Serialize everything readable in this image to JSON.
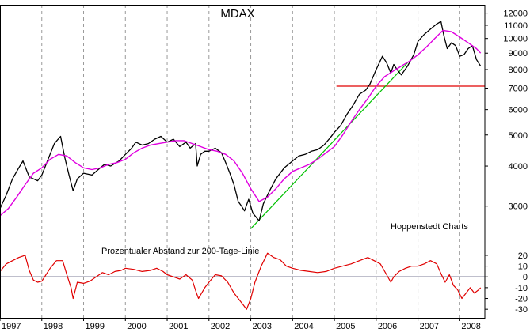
{
  "chart_data": [
    {
      "type": "line",
      "title": "MDAX",
      "yscale": "log",
      "ylim": [
        2400,
        12600
      ],
      "xlim": [
        1997.0,
        2008.6
      ],
      "grid": {
        "vertical": true,
        "horizontal": false
      },
      "y_ticks": [
        3000,
        4000,
        5000,
        6000,
        7000,
        8000,
        9000,
        10000,
        11000,
        12000
      ],
      "x_ticks": [
        "1997",
        "1998",
        "1999",
        "2000",
        "2001",
        "2002",
        "2003",
        "2004",
        "2005",
        "2006",
        "2007",
        "2008"
      ],
      "annotations": [
        "Hoppenstedt Charts"
      ],
      "colors": {
        "index": "#000000",
        "moving_average": "#e000e0",
        "support": "#e00000",
        "trend": "#00c000"
      },
      "series": [
        {
          "key": "index",
          "x": [
            1997.0,
            1997.15,
            1997.3,
            1997.45,
            1997.55,
            1997.7,
            1997.8,
            1997.9,
            1998.0,
            1998.15,
            1998.3,
            1998.45,
            1998.55,
            1998.65,
            1998.75,
            1998.85,
            1999.0,
            1999.2,
            1999.35,
            1999.5,
            1999.65,
            1999.85,
            2000.0,
            2000.15,
            2000.25,
            2000.4,
            2000.55,
            2000.7,
            2000.85,
            2001.0,
            2001.15,
            2001.3,
            2001.45,
            2001.55,
            2001.68,
            2001.72,
            2001.8,
            2001.9,
            2002.0,
            2002.15,
            2002.3,
            2002.4,
            2002.5,
            2002.6,
            2002.7,
            2002.78,
            2002.85,
            2002.95,
            2003.05,
            2003.2,
            2003.3,
            2003.45,
            2003.6,
            2003.8,
            2004.0,
            2004.15,
            2004.3,
            2004.45,
            2004.6,
            2004.75,
            2004.9,
            2005.0,
            2005.15,
            2005.3,
            2005.45,
            2005.6,
            2005.75,
            2005.85,
            2006.0,
            2006.15,
            2006.25,
            2006.35,
            2006.42,
            2006.5,
            2006.6,
            2006.75,
            2006.9,
            2007.0,
            2007.15,
            2007.3,
            2007.45,
            2007.55,
            2007.62,
            2007.7,
            2007.8,
            2007.9,
            2008.0,
            2008.1,
            2008.2,
            2008.3,
            2008.4,
            2008.5
          ],
          "y": [
            2950,
            3250,
            3650,
            3950,
            4150,
            3700,
            3650,
            3600,
            3750,
            4200,
            4700,
            4950,
            4250,
            3750,
            3350,
            3650,
            3800,
            3750,
            3900,
            4050,
            4000,
            4150,
            4350,
            4550,
            4750,
            4650,
            4700,
            4850,
            4950,
            4750,
            4850,
            4600,
            4750,
            4550,
            4700,
            4000,
            4350,
            4450,
            4450,
            4550,
            4400,
            4100,
            3800,
            3500,
            3100,
            3000,
            2900,
            3150,
            2850,
            2700,
            3050,
            3350,
            3650,
            3950,
            4150,
            4300,
            4350,
            4450,
            4500,
            4650,
            4900,
            5100,
            5350,
            5800,
            6200,
            6700,
            6900,
            7200,
            8000,
            8800,
            8400,
            7800,
            8300,
            8000,
            7700,
            8200,
            8900,
            9800,
            10300,
            10700,
            11100,
            11300,
            10200,
            9300,
            9700,
            9500,
            8800,
            8900,
            9300,
            9500,
            8600,
            8200
          ]
        },
        {
          "key": "moving_average",
          "x": [
            1997.0,
            1997.2,
            1997.4,
            1997.6,
            1997.8,
            1998.0,
            1998.2,
            1998.4,
            1998.6,
            1998.8,
            1999.0,
            1999.2,
            1999.4,
            1999.6,
            1999.8,
            2000.0,
            2000.2,
            2000.4,
            2000.6,
            2000.8,
            2001.0,
            2001.2,
            2001.4,
            2001.6,
            2001.8,
            2002.0,
            2002.2,
            2002.4,
            2002.6,
            2002.8,
            2003.0,
            2003.2,
            2003.4,
            2003.6,
            2003.8,
            2004.0,
            2004.2,
            2004.4,
            2004.6,
            2004.8,
            2005.0,
            2005.2,
            2005.4,
            2005.6,
            2005.8,
            2006.0,
            2006.2,
            2006.4,
            2006.6,
            2006.8,
            2007.0,
            2007.2,
            2007.4,
            2007.6,
            2007.8,
            2008.0,
            2008.2,
            2008.4,
            2008.5
          ],
          "y": [
            2800,
            2950,
            3200,
            3500,
            3800,
            3950,
            4200,
            4350,
            4300,
            4100,
            3950,
            3900,
            3950,
            4050,
            4100,
            4200,
            4400,
            4550,
            4650,
            4700,
            4750,
            4800,
            4800,
            4700,
            4600,
            4500,
            4450,
            4350,
            4150,
            3800,
            3400,
            3100,
            3200,
            3400,
            3650,
            3850,
            3950,
            4050,
            4200,
            4400,
            4600,
            5000,
            5500,
            6000,
            6500,
            7100,
            7600,
            7900,
            8200,
            8500,
            8900,
            9400,
            10000,
            10600,
            10500,
            10100,
            9700,
            9300,
            9000
          ]
        }
      ],
      "reference_lines": [
        {
          "key": "support",
          "x": [
            2005.05,
            2008.6
          ],
          "y": [
            7100,
            7100
          ]
        },
        {
          "key": "trend",
          "x": [
            2003.0,
            2006.75
          ],
          "y": [
            2550,
            8400
          ]
        }
      ]
    },
    {
      "type": "line",
      "title": "Prozentualer Abstand zur 200-Tage-Linie",
      "ylim": [
        -35,
        28
      ],
      "y_ticks": [
        -30,
        -20,
        -10,
        0,
        10,
        20
      ],
      "zero_line": true,
      "colors": {
        "deviation": "#e00000",
        "zero": "#000033"
      },
      "series": [
        {
          "key": "deviation",
          "x": [
            1997.0,
            1997.15,
            1997.3,
            1997.45,
            1997.6,
            1997.7,
            1997.8,
            1997.9,
            1998.0,
            1998.2,
            1998.35,
            1998.5,
            1998.6,
            1998.7,
            1998.75,
            1998.85,
            1999.0,
            1999.15,
            1999.3,
            1999.45,
            1999.6,
            1999.75,
            1999.9,
            2000.0,
            2000.2,
            2000.4,
            2000.6,
            2000.75,
            2000.9,
            2001.0,
            2001.15,
            2001.3,
            2001.45,
            2001.6,
            2001.7,
            2001.75,
            2001.9,
            2002.0,
            2002.15,
            2002.3,
            2002.45,
            2002.6,
            2002.7,
            2002.8,
            2002.9,
            2003.0,
            2003.1,
            2003.25,
            2003.4,
            2003.55,
            2003.7,
            2003.85,
            2004.0,
            2004.2,
            2004.4,
            2004.6,
            2004.8,
            2005.0,
            2005.2,
            2005.4,
            2005.6,
            2005.8,
            2005.95,
            2006.1,
            2006.25,
            2006.35,
            2006.42,
            2006.55,
            2006.7,
            2006.85,
            2007.0,
            2007.15,
            2007.3,
            2007.45,
            2007.55,
            2007.65,
            2007.75,
            2007.85,
            2007.95,
            2008.05,
            2008.15,
            2008.25,
            2008.35,
            2008.45,
            2008.5
          ],
          "y": [
            5,
            12,
            15,
            18,
            20,
            6,
            -3,
            -5,
            -4,
            8,
            15,
            15,
            2,
            -10,
            -20,
            -5,
            -6,
            -4,
            0,
            4,
            2,
            5,
            6,
            8,
            7,
            5,
            6,
            8,
            5,
            2,
            0,
            -2,
            2,
            -3,
            -15,
            -20,
            -10,
            -5,
            2,
            1,
            -5,
            -15,
            -20,
            -25,
            -30,
            -20,
            -5,
            10,
            22,
            18,
            16,
            10,
            8,
            6,
            5,
            4,
            5,
            8,
            10,
            12,
            15,
            18,
            15,
            12,
            2,
            -5,
            0,
            5,
            8,
            10,
            10,
            12,
            15,
            12,
            3,
            -5,
            2,
            -8,
            -12,
            -20,
            -15,
            -10,
            -15,
            -12,
            -10
          ]
        }
      ]
    }
  ]
}
